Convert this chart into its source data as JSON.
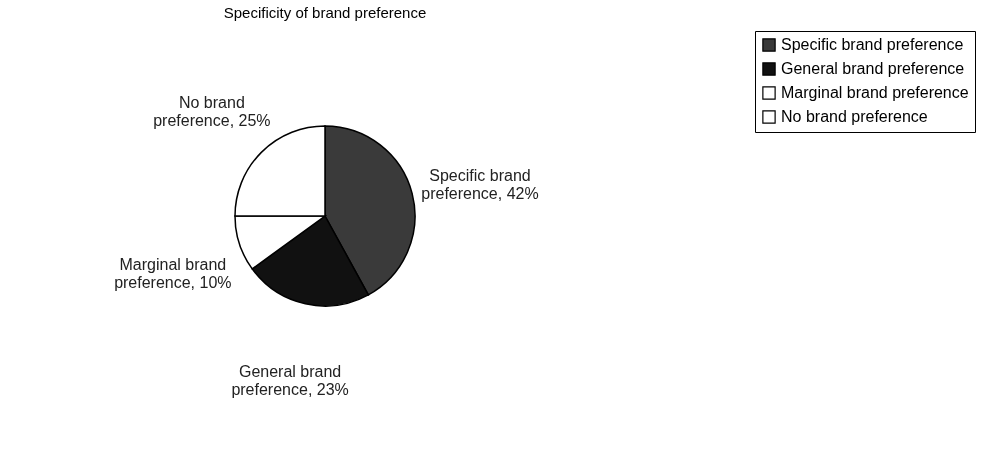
{
  "chart_data": {
    "type": "pie",
    "title": "Specificity of brand preference",
    "categories": [
      "Specific brand preference",
      "General brand preference",
      "Marginal brand preference",
      "No brand preference"
    ],
    "values": [
      42,
      23,
      10,
      25
    ],
    "colors": [
      "#3a3a3a",
      "#111111",
      "#ffffff",
      "#ffffff"
    ],
    "value_labels": [
      "Specific brand preference, 42%",
      "General brand preference, 23%",
      "Marginal brand preference, 10%",
      "No brand preference, 25%"
    ],
    "legend": "right"
  }
}
